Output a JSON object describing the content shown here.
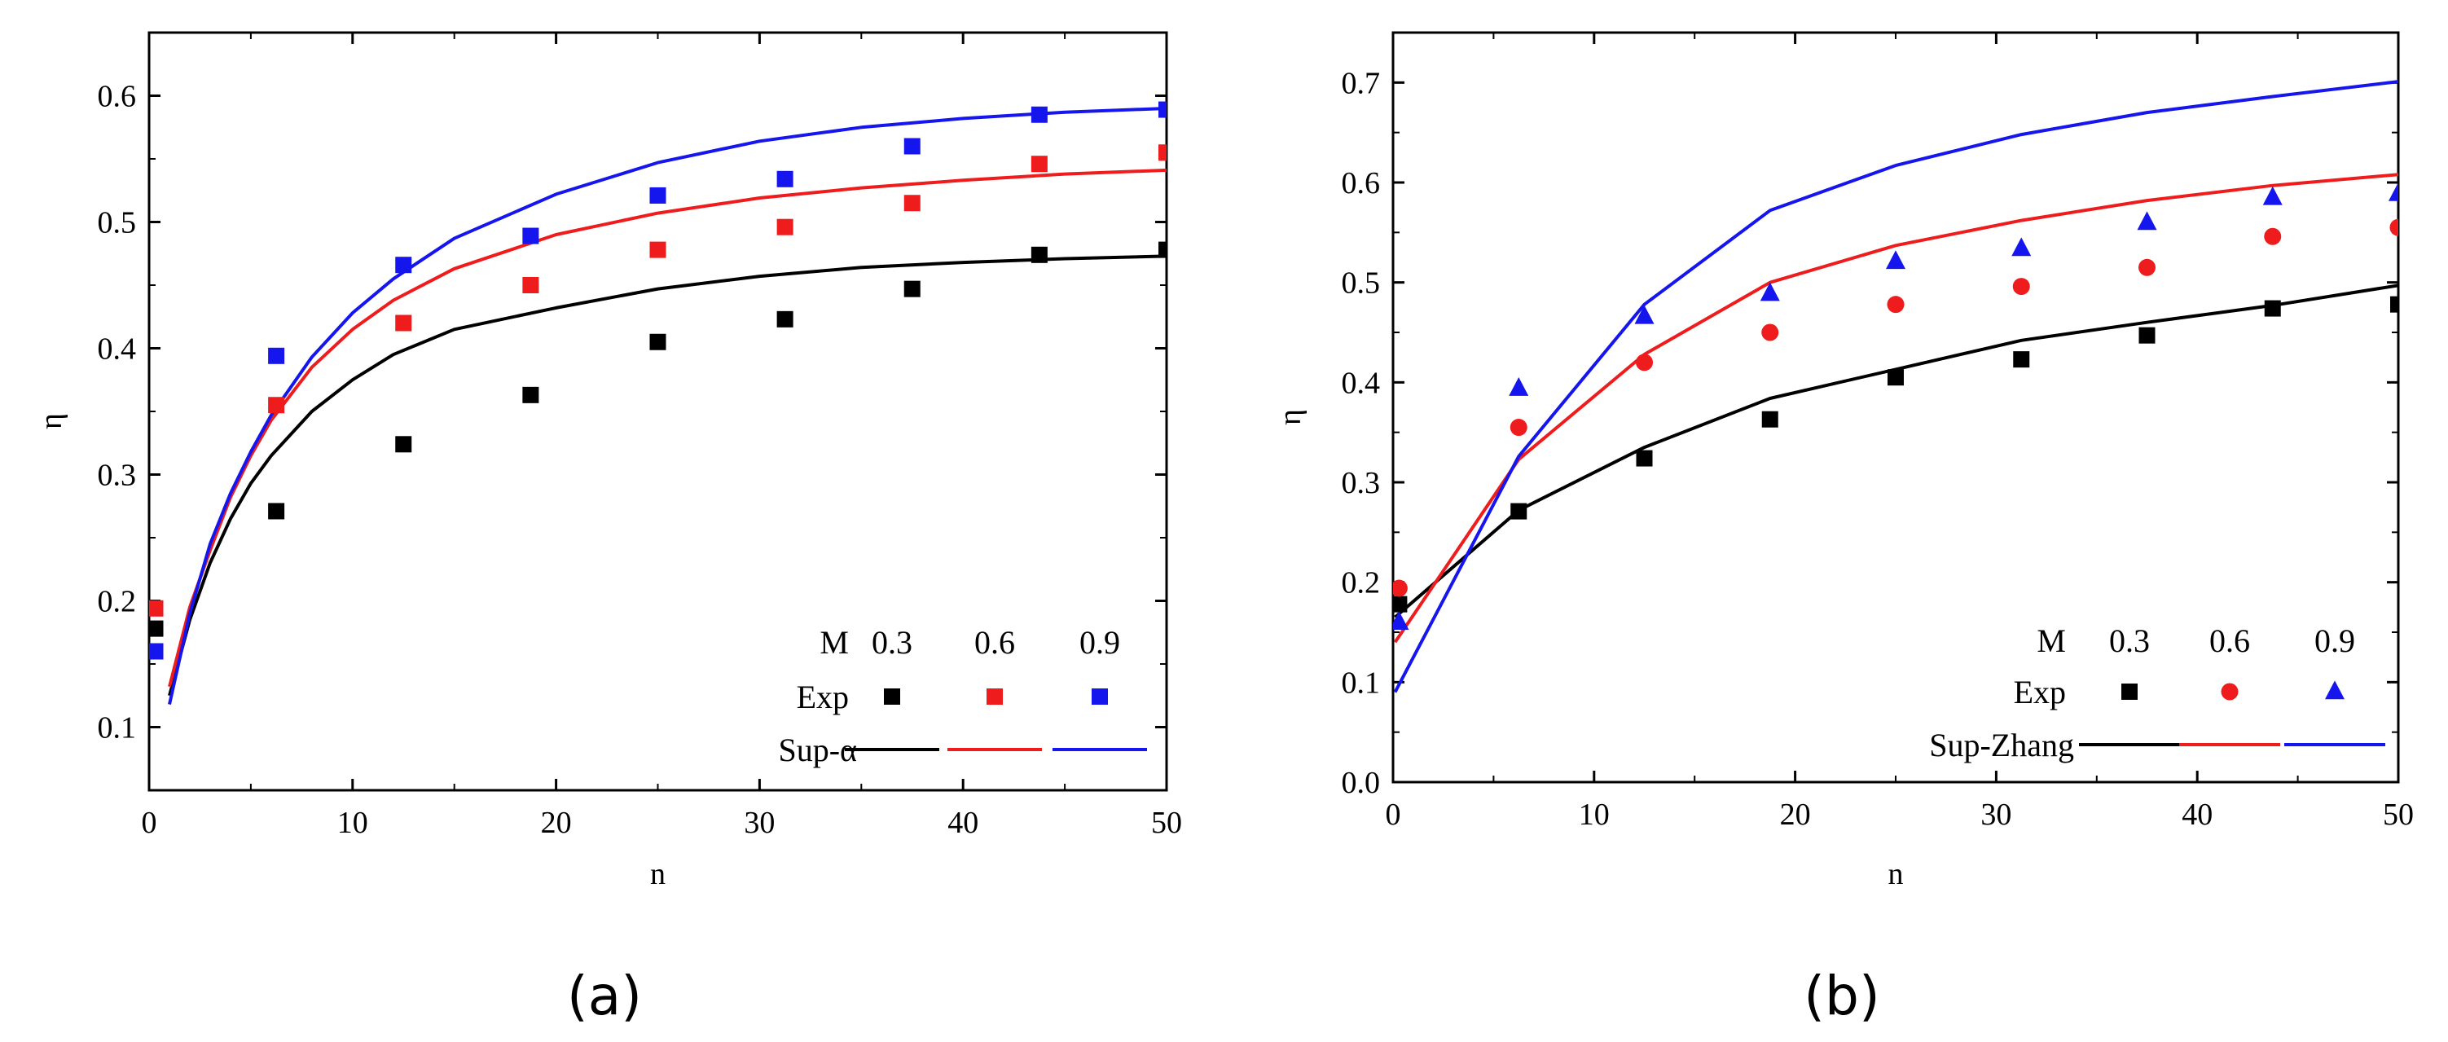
{
  "colors": {
    "M03": "#000000",
    "M06": "#ee1c1c",
    "M09": "#1515ee"
  },
  "chart_data": [
    {
      "panel": "(a)",
      "type": "scatter",
      "xlabel": "n",
      "ylabel": "η",
      "xlim": [
        0,
        50
      ],
      "ylim": [
        0.05,
        0.65
      ],
      "xticks": [
        0,
        10,
        20,
        30,
        40,
        50
      ],
      "yticks": [
        0.1,
        0.2,
        0.3,
        0.4,
        0.5,
        0.6
      ],
      "legend": {
        "placement": "bottom-right",
        "header": "M",
        "row_exp": "Exp",
        "row_sup": "Sup-α",
        "columns": [
          "0.3",
          "0.6",
          "0.9"
        ]
      },
      "exp_marker": [
        "square",
        "square",
        "square"
      ],
      "series": [
        {
          "name": "Exp M=0.3",
          "kind": "exp",
          "color_key": "M03",
          "x": [
            0.3,
            6.25,
            12.5,
            18.75,
            25,
            31.25,
            37.5,
            43.75,
            50
          ],
          "y": [
            0.178,
            0.271,
            0.324,
            0.363,
            0.405,
            0.423,
            0.447,
            0.474,
            0.478
          ]
        },
        {
          "name": "Exp M=0.6",
          "kind": "exp",
          "color_key": "M06",
          "x": [
            0.3,
            6.25,
            12.5,
            18.75,
            25,
            31.25,
            37.5,
            43.75,
            50
          ],
          "y": [
            0.194,
            0.355,
            0.42,
            0.45,
            0.478,
            0.496,
            0.515,
            0.546,
            0.555
          ]
        },
        {
          "name": "Exp M=0.9",
          "kind": "exp",
          "color_key": "M09",
          "x": [
            0.3,
            6.25,
            12.5,
            18.75,
            25,
            31.25,
            37.5,
            43.75,
            50
          ],
          "y": [
            0.16,
            0.394,
            0.466,
            0.489,
            0.521,
            0.534,
            0.56,
            0.585,
            0.589
          ]
        },
        {
          "name": "Sup-α M=0.3",
          "kind": "line",
          "color_key": "M03",
          "x": [
            1,
            2,
            3,
            4,
            5,
            6,
            8,
            10,
            12,
            15,
            20,
            25,
            30,
            35,
            40,
            45,
            50
          ],
          "y": [
            0.125,
            0.185,
            0.23,
            0.265,
            0.293,
            0.315,
            0.35,
            0.375,
            0.395,
            0.415,
            0.432,
            0.447,
            0.457,
            0.464,
            0.468,
            0.471,
            0.473
          ]
        },
        {
          "name": "Sup-α M=0.6",
          "kind": "line",
          "color_key": "M06",
          "x": [
            1,
            2,
            3,
            4,
            5,
            6,
            8,
            10,
            12,
            15,
            20,
            25,
            30,
            35,
            40,
            45,
            50
          ],
          "y": [
            0.132,
            0.195,
            0.24,
            0.282,
            0.315,
            0.343,
            0.385,
            0.415,
            0.438,
            0.463,
            0.49,
            0.507,
            0.519,
            0.527,
            0.533,
            0.538,
            0.541
          ]
        },
        {
          "name": "Sup-α M=0.9",
          "kind": "line",
          "color_key": "M09",
          "x": [
            1,
            2,
            3,
            4,
            5,
            6,
            8,
            10,
            12,
            15,
            20,
            25,
            30,
            35,
            40,
            45,
            50
          ],
          "y": [
            0.118,
            0.19,
            0.245,
            0.285,
            0.318,
            0.347,
            0.393,
            0.428,
            0.455,
            0.487,
            0.522,
            0.547,
            0.564,
            0.575,
            0.582,
            0.587,
            0.59
          ]
        }
      ]
    },
    {
      "panel": "(b)",
      "type": "scatter",
      "xlabel": "n",
      "ylabel": "η",
      "xlim": [
        0,
        50
      ],
      "ylim": [
        0.0,
        0.75
      ],
      "xticks": [
        0,
        10,
        20,
        30,
        40,
        50
      ],
      "yticks": [
        0.0,
        0.1,
        0.2,
        0.3,
        0.4,
        0.5,
        0.6,
        0.7
      ],
      "legend": {
        "placement": "bottom-right",
        "header": "M",
        "row_exp": "Exp",
        "row_sup": "Sup-Zhang",
        "columns": [
          "0.3",
          "0.6",
          "0.9"
        ]
      },
      "exp_marker": [
        "square",
        "circle",
        "triangle"
      ],
      "series": [
        {
          "name": "Exp M=0.3",
          "kind": "exp",
          "color_key": "M03",
          "x": [
            0.3,
            6.25,
            12.5,
            18.75,
            25,
            31.25,
            37.5,
            43.75,
            50
          ],
          "y": [
            0.178,
            0.271,
            0.324,
            0.363,
            0.405,
            0.423,
            0.447,
            0.474,
            0.478
          ]
        },
        {
          "name": "Exp M=0.6",
          "kind": "exp",
          "color_key": "M06",
          "x": [
            0.3,
            6.25,
            12.5,
            18.75,
            25,
            31.25,
            37.5,
            43.75,
            50
          ],
          "y": [
            0.194,
            0.355,
            0.42,
            0.45,
            0.478,
            0.496,
            0.515,
            0.546,
            0.555
          ]
        },
        {
          "name": "Exp M=0.9",
          "kind": "exp",
          "color_key": "M09",
          "x": [
            0.3,
            6.25,
            12.5,
            18.75,
            25,
            31.25,
            37.5,
            43.75,
            50
          ],
          "y": [
            0.16,
            0.394,
            0.466,
            0.489,
            0.521,
            0.534,
            0.56,
            0.585,
            0.589
          ]
        },
        {
          "name": "Sup-Zhang M=0.3",
          "kind": "line",
          "color_key": "M03",
          "x": [
            0.1,
            6.25,
            12.5,
            18.75,
            25,
            31.25,
            37.5,
            43.75,
            50
          ],
          "y": [
            0.165,
            0.272,
            0.335,
            0.384,
            0.413,
            0.442,
            0.46,
            0.477,
            0.497
          ]
        },
        {
          "name": "Sup-Zhang M=0.6",
          "kind": "line",
          "color_key": "M06",
          "x": [
            0.1,
            6.25,
            12.5,
            18.75,
            25,
            31.25,
            37.5,
            43.75,
            50
          ],
          "y": [
            0.14,
            0.323,
            0.428,
            0.5,
            0.537,
            0.562,
            0.582,
            0.597,
            0.608
          ]
        },
        {
          "name": "Sup-Zhang M=0.9",
          "kind": "line",
          "color_key": "M09",
          "x": [
            0.1,
            6.25,
            12.5,
            18.75,
            25,
            31.25,
            37.5,
            43.75,
            50
          ],
          "y": [
            0.09,
            0.326,
            0.478,
            0.572,
            0.617,
            0.648,
            0.67,
            0.686,
            0.701
          ]
        }
      ]
    }
  ]
}
